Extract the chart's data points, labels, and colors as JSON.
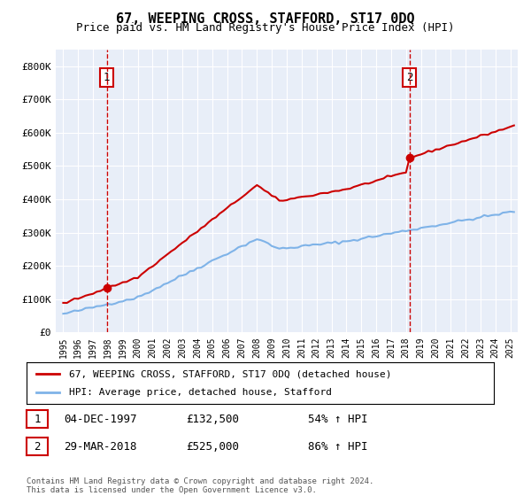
{
  "title": "67, WEEPING CROSS, STAFFORD, ST17 0DQ",
  "subtitle": "Price paid vs. HM Land Registry's House Price Index (HPI)",
  "ylim": [
    0,
    850000
  ],
  "yticks": [
    0,
    100000,
    200000,
    300000,
    400000,
    500000,
    600000,
    700000,
    800000
  ],
  "ytick_labels": [
    "£0",
    "£100K",
    "£200K",
    "£300K",
    "£400K",
    "£500K",
    "£600K",
    "£700K",
    "£800K"
  ],
  "plot_bg_color": "#e8eef8",
  "sale1_date": 1997.92,
  "sale1_price": 132500,
  "sale2_date": 2018.24,
  "sale2_price": 525000,
  "hpi_line_color": "#7fb3e8",
  "price_line_color": "#cc0000",
  "marker_color": "#cc0000",
  "vline_color": "#cc0000",
  "legend_label_red": "67, WEEPING CROSS, STAFFORD, ST17 0DQ (detached house)",
  "legend_label_blue": "HPI: Average price, detached house, Stafford",
  "note1_date": "04-DEC-1997",
  "note1_price": "£132,500",
  "note1_pct": "54% ↑ HPI",
  "note2_date": "29-MAR-2018",
  "note2_price": "£525,000",
  "note2_pct": "86% ↑ HPI",
  "footer": "Contains HM Land Registry data © Crown copyright and database right 2024.\nThis data is licensed under the Open Government Licence v3.0.",
  "xlim_start": 1994.5,
  "xlim_end": 2025.5
}
